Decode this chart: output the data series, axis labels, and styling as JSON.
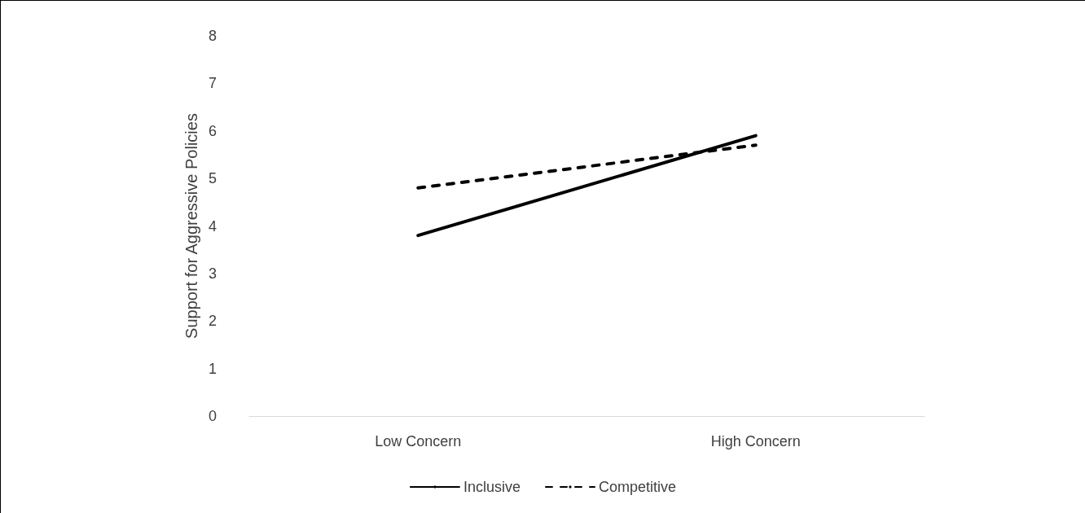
{
  "chart_data": {
    "type": "line",
    "ylabel": "Support for Aggressive Policies",
    "categories": [
      "Low Concern",
      "High Concern"
    ],
    "series": [
      {
        "name": "Inclusive",
        "color": "#000000",
        "values": [
          3.8,
          5.9
        ],
        "line_style": "solid"
      },
      {
        "name": "Competitive",
        "color": "#000000",
        "values": [
          4.8,
          5.7
        ],
        "line_style": "dashed"
      }
    ],
    "ylim": [
      0,
      8
    ],
    "yticks": [
      0,
      1,
      2,
      3,
      4,
      5,
      6,
      7,
      8
    ],
    "grid": false,
    "legend": "bottom",
    "marker": "none"
  }
}
